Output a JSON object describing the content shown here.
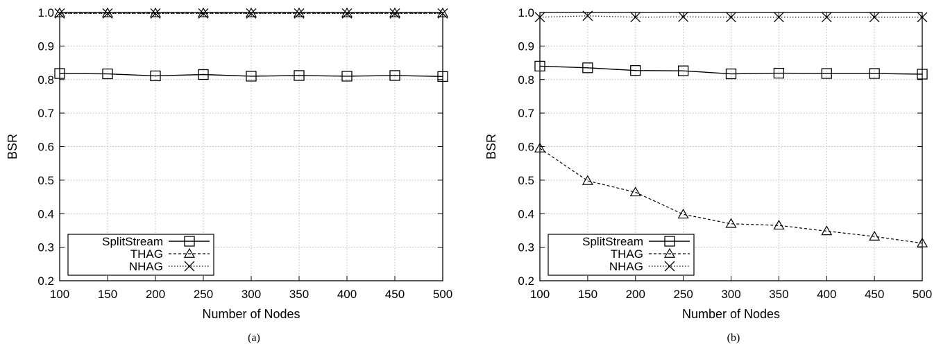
{
  "chart_data": [
    {
      "type": "line",
      "panel_caption": "(a)",
      "xlabel": "Number of Nodes",
      "ylabel": "BSR",
      "x": [
        100,
        150,
        200,
        250,
        300,
        350,
        400,
        450,
        500
      ],
      "xticks": [
        "100",
        "150",
        "200",
        "250",
        "300",
        "350",
        "400",
        "450",
        "500"
      ],
      "yticks": [
        "0.2",
        "0.3",
        "0.4",
        "0.5",
        "0.6",
        "0.7",
        "0.8",
        "0.9",
        "1.0"
      ],
      "xlim": [
        100,
        500
      ],
      "ylim": [
        0.2,
        1.0
      ],
      "grid": true,
      "legend_position": "bottom-left",
      "series": [
        {
          "name": "SplitStream",
          "marker": "square",
          "line": "solid",
          "values": [
            0.818,
            0.817,
            0.811,
            0.815,
            0.81,
            0.812,
            0.81,
            0.812,
            0.809
          ]
        },
        {
          "name": "THAG",
          "marker": "triangle",
          "line": "dashed",
          "values": [
            0.998,
            0.998,
            0.998,
            0.998,
            0.998,
            0.998,
            0.998,
            0.998,
            0.998
          ]
        },
        {
          "name": "NHAG",
          "marker": "x",
          "line": "dotted",
          "values": [
            0.997,
            0.997,
            0.997,
            0.997,
            0.997,
            0.997,
            0.997,
            0.997,
            0.997
          ]
        }
      ]
    },
    {
      "type": "line",
      "panel_caption": "(b)",
      "xlabel": "Number of Nodes",
      "ylabel": "BSR",
      "x": [
        100,
        150,
        200,
        250,
        300,
        350,
        400,
        450,
        500
      ],
      "xticks": [
        "100",
        "150",
        "200",
        "250",
        "300",
        "350",
        "400",
        "450",
        "500"
      ],
      "yticks": [
        "0.2",
        "0.3",
        "0.4",
        "0.5",
        "0.6",
        "0.7",
        "0.8",
        "0.9",
        "1.0"
      ],
      "xlim": [
        100,
        500
      ],
      "ylim": [
        0.2,
        1.0
      ],
      "grid": true,
      "legend_position": "bottom-left",
      "series": [
        {
          "name": "SplitStream",
          "marker": "square",
          "line": "solid",
          "values": [
            0.84,
            0.835,
            0.827,
            0.826,
            0.817,
            0.819,
            0.818,
            0.818,
            0.816
          ]
        },
        {
          "name": "THAG",
          "marker": "triangle",
          "line": "dashed",
          "values": [
            0.595,
            0.498,
            0.464,
            0.398,
            0.37,
            0.365,
            0.348,
            0.332,
            0.312
          ]
        },
        {
          "name": "NHAG",
          "marker": "x",
          "line": "dotted",
          "values": [
            0.986,
            0.99,
            0.986,
            0.987,
            0.986,
            0.986,
            0.986,
            0.986,
            0.986
          ]
        }
      ]
    }
  ]
}
